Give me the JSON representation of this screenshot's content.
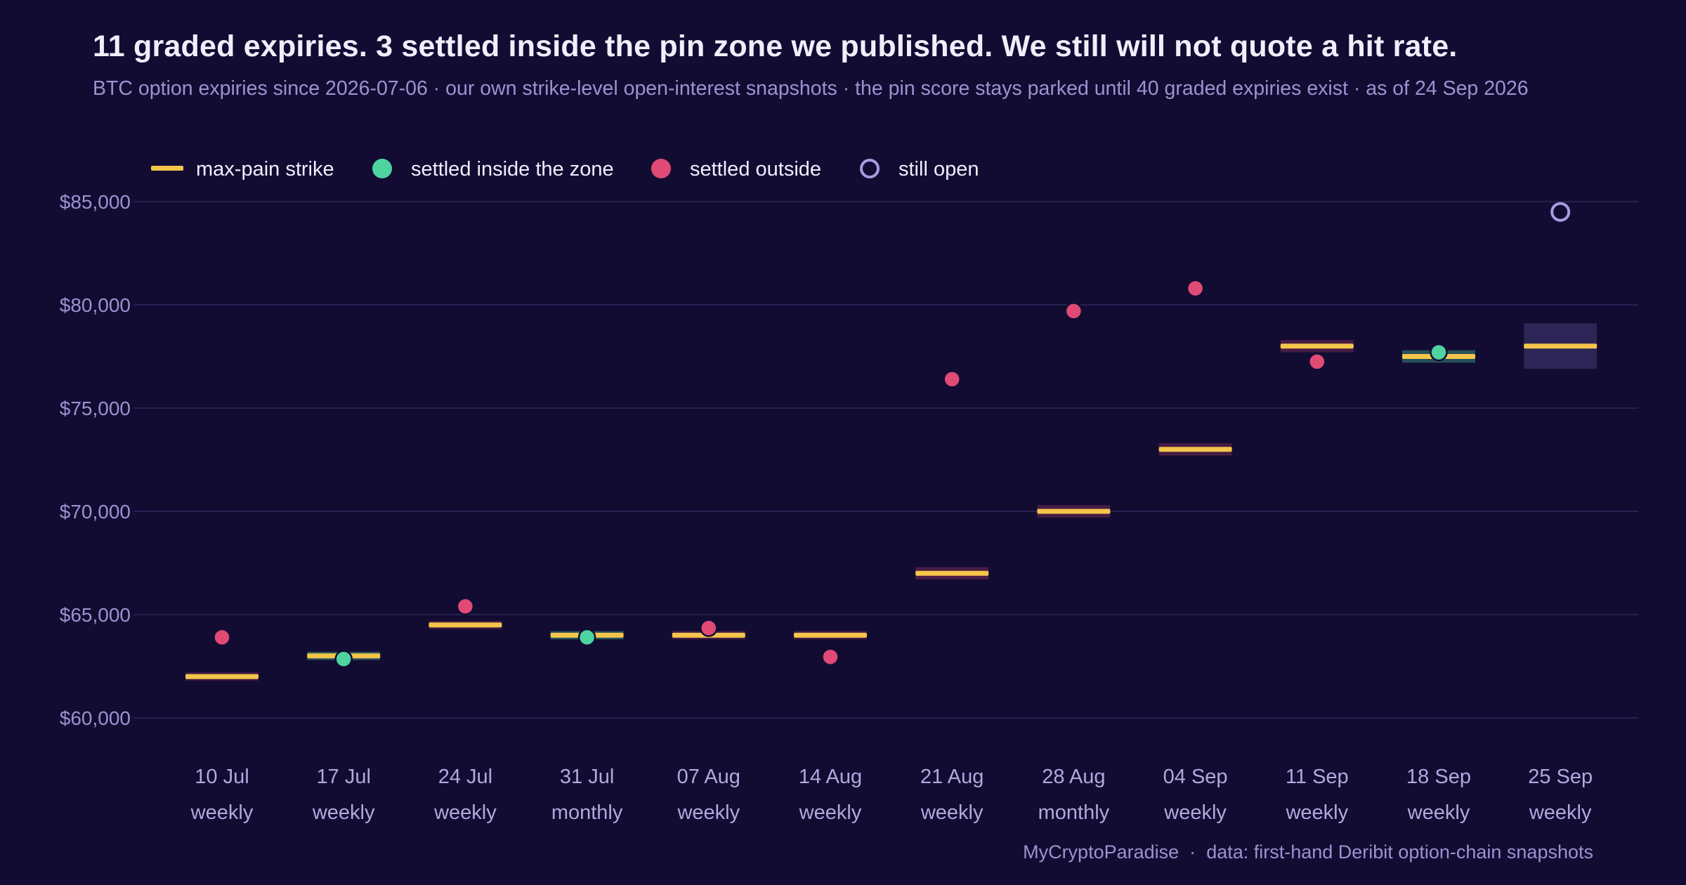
{
  "title": "11 graded expiries. 3 settled inside the pin zone we published. We still will not quote a hit rate.",
  "subtitle": "BTC option expiries since 2026-07-06 · our own strike-level open-interest snapshots · the pin score stays parked until 40 graded expiries exist · as of 24 Sep 2026",
  "footer": {
    "brand": "MyCryptoParadise",
    "separator": "·",
    "source": "data: first-hand Deribit option-chain snapshots"
  },
  "legend": [
    {
      "key": "max_pain",
      "label": "max-pain strike"
    },
    {
      "key": "inside",
      "label": "settled inside the zone"
    },
    {
      "key": "outside",
      "label": "settled outside"
    },
    {
      "key": "open",
      "label": "still open"
    }
  ],
  "colors": {
    "background": "#120c33",
    "max_pain": "#f4c54a",
    "inside": "#4fd3a0",
    "outside": "#e04a75",
    "open": "#a99be0",
    "grid": "#272050",
    "tick_text": "#9d92cf",
    "zone_open": "#2c2556"
  },
  "chart_data": {
    "type": "scatter",
    "y_format": "$",
    "ylim": [
      58000,
      87000
    ],
    "yticks": [
      "$60,000",
      "$65,000",
      "$70,000",
      "$75,000",
      "$80,000",
      "$85,000"
    ],
    "ytick_values": [
      60000,
      65000,
      70000,
      75000,
      80000,
      85000
    ],
    "grid": true,
    "legend_position": "top-left",
    "expiries": [
      {
        "date": "10 Jul",
        "kind": "weekly",
        "max_pain": 62000,
        "zone": [
          61800,
          62200
        ],
        "settle": 63900,
        "status": "outside"
      },
      {
        "date": "17 Jul",
        "kind": "weekly",
        "max_pain": 63000,
        "zone": [
          62800,
          63200
        ],
        "settle": 62850,
        "status": "inside"
      },
      {
        "date": "24 Jul",
        "kind": "weekly",
        "max_pain": 64500,
        "zone": [
          64300,
          64700
        ],
        "settle": 65400,
        "status": "outside"
      },
      {
        "date": "31 Jul",
        "kind": "monthly",
        "max_pain": 64000,
        "zone": [
          63800,
          64200
        ],
        "settle": 63900,
        "status": "inside"
      },
      {
        "date": "07 Aug",
        "kind": "weekly",
        "max_pain": 64000,
        "zone": [
          63800,
          64200
        ],
        "settle": 64350,
        "status": "outside"
      },
      {
        "date": "14 Aug",
        "kind": "weekly",
        "max_pain": 64000,
        "zone": [
          63800,
          64200
        ],
        "settle": 62950,
        "status": "outside"
      },
      {
        "date": "21 Aug",
        "kind": "weekly",
        "max_pain": 67000,
        "zone": [
          66700,
          67300
        ],
        "settle": 76400,
        "status": "outside"
      },
      {
        "date": "28 Aug",
        "kind": "monthly",
        "max_pain": 70000,
        "zone": [
          69700,
          70300
        ],
        "settle": 79700,
        "status": "outside"
      },
      {
        "date": "04 Sep",
        "kind": "weekly",
        "max_pain": 73000,
        "zone": [
          72700,
          73300
        ],
        "settle": 80800,
        "status": "outside"
      },
      {
        "date": "11 Sep",
        "kind": "weekly",
        "max_pain": 78000,
        "zone": [
          77700,
          78300
        ],
        "settle": 77250,
        "status": "outside"
      },
      {
        "date": "18 Sep",
        "kind": "weekly",
        "max_pain": 77500,
        "zone": [
          77200,
          77800
        ],
        "settle": 77700,
        "status": "inside"
      },
      {
        "date": "25 Sep",
        "kind": "weekly",
        "max_pain": 78000,
        "zone": [
          76900,
          79100
        ],
        "settle": 84500,
        "status": "open"
      }
    ]
  }
}
